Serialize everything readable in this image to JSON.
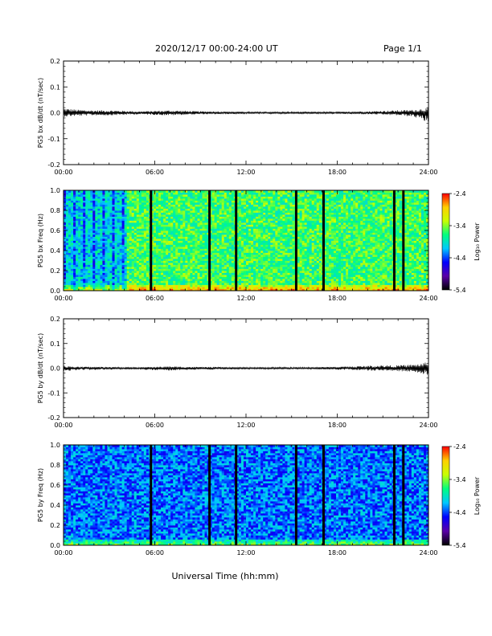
{
  "header": {
    "title": "2020/12/17  00:00-24:00 UT",
    "page": "Page 1/1"
  },
  "xlabel": "Universal Time (hh:mm)",
  "colorbar": {
    "label": "Log₁₀ Power",
    "ticks": [
      "-2.4",
      "-3.4",
      "-4.4",
      "-5.4"
    ],
    "range": [
      -5.4,
      -2.4
    ],
    "colormap": [
      "#000000",
      "#5a00a8",
      "#0000ff",
      "#00c8ff",
      "#00ff80",
      "#c8ff00",
      "#ffd000",
      "#ff0000"
    ]
  },
  "chart_data": [
    {
      "type": "line",
      "ylabel": "PG5 bx dB/dt (nT/sec)",
      "xlim": [
        0,
        24
      ],
      "ylim": [
        -0.2,
        0.2
      ],
      "xticks": [
        "00:00",
        "06:00",
        "12:00",
        "18:00",
        "24:00"
      ],
      "yticks": [
        "-0.2",
        "-0.1",
        "0.0",
        "0.1",
        "0.2"
      ],
      "x": [
        0,
        1,
        2,
        3,
        4,
        5,
        6,
        7,
        8,
        9,
        10,
        11,
        12,
        13,
        14,
        15,
        16,
        17,
        18,
        19,
        20,
        21,
        22,
        23,
        24
      ],
      "y_upper": [
        0.018,
        0.012,
        0.01,
        0.01,
        0.008,
        0.006,
        0.008,
        0.01,
        0.008,
        0.006,
        0.006,
        0.005,
        0.004,
        0.004,
        0.004,
        0.004,
        0.004,
        0.004,
        0.004,
        0.005,
        0.006,
        0.008,
        0.01,
        0.012,
        0.02
      ],
      "y_lower": [
        -0.015,
        -0.012,
        -0.01,
        -0.01,
        -0.008,
        -0.006,
        -0.008,
        -0.01,
        -0.008,
        -0.006,
        -0.006,
        -0.005,
        -0.004,
        -0.004,
        -0.004,
        -0.004,
        -0.004,
        -0.004,
        -0.004,
        -0.005,
        -0.006,
        -0.008,
        -0.01,
        -0.015,
        -0.04
      ]
    },
    {
      "type": "heatmap",
      "ylabel": "PG5 bx Freq (Hz)",
      "xlim": [
        0,
        24
      ],
      "ylim": [
        0,
        1
      ],
      "xticks": [
        "00:00",
        "06:00",
        "12:00",
        "18:00",
        "24:00"
      ],
      "yticks": [
        "0.0",
        "0.2",
        "0.4",
        "0.6",
        "0.8",
        "1.0"
      ],
      "gap_times_hours": [
        5.75,
        9.6,
        11.35,
        15.3,
        17.1,
        21.75,
        22.35
      ],
      "background_level": -3.6,
      "low_activity_interval_hours": [
        0,
        4.1
      ],
      "low_activity_level": -4.0
    },
    {
      "type": "line",
      "ylabel": "PG5 by dB/dt (nT/sec)",
      "xlim": [
        0,
        24
      ],
      "ylim": [
        -0.2,
        0.2
      ],
      "xticks": [
        "00:00",
        "06:00",
        "12:00",
        "18:00",
        "24:00"
      ],
      "yticks": [
        "-0.2",
        "-0.1",
        "0.0",
        "0.1",
        "0.2"
      ],
      "x": [
        0,
        1,
        2,
        3,
        4,
        5,
        6,
        7,
        8,
        9,
        10,
        11,
        12,
        13,
        14,
        15,
        16,
        17,
        18,
        19,
        20,
        21,
        22,
        23,
        24
      ],
      "y_upper": [
        0.01,
        0.006,
        0.006,
        0.005,
        0.004,
        0.004,
        0.006,
        0.008,
        0.006,
        0.005,
        0.005,
        0.004,
        0.004,
        0.004,
        0.004,
        0.004,
        0.004,
        0.005,
        0.006,
        0.008,
        0.01,
        0.012,
        0.012,
        0.015,
        0.025
      ],
      "y_lower": [
        -0.012,
        -0.008,
        -0.008,
        -0.006,
        -0.005,
        -0.005,
        -0.008,
        -0.01,
        -0.008,
        -0.006,
        -0.006,
        -0.005,
        -0.004,
        -0.004,
        -0.004,
        -0.004,
        -0.004,
        -0.005,
        -0.006,
        -0.008,
        -0.01,
        -0.012,
        -0.012,
        -0.015,
        -0.03
      ]
    },
    {
      "type": "heatmap",
      "ylabel": "PG5 by Freq (Hz)",
      "xlim": [
        0,
        24
      ],
      "ylim": [
        0,
        1
      ],
      "xticks": [
        "00:00",
        "06:00",
        "12:00",
        "18:00",
        "24:00"
      ],
      "yticks": [
        "0.0",
        "0.2",
        "0.4",
        "0.6",
        "0.8",
        "1.0"
      ],
      "gap_times_hours": [
        5.75,
        9.6,
        11.35,
        15.3,
        17.1,
        21.75,
        22.35
      ],
      "background_level": -4.3,
      "low_activity_interval_hours": [],
      "low_activity_level": -4.3
    }
  ]
}
